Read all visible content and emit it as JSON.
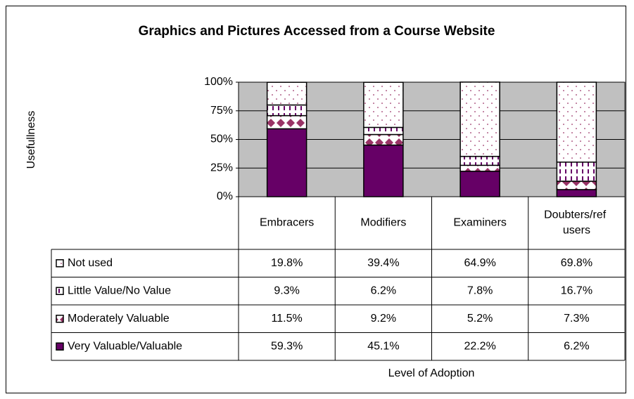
{
  "chart_data": {
    "type": "stacked_bar",
    "title": "Graphics and Pictures Accessed from a Course Website",
    "y_label": "Usefullness",
    "x_label": "Level of Adoption",
    "categories": [
      "Embracers",
      "Modifiers",
      "Examiners",
      "Doubters/ref users"
    ],
    "series": [
      {
        "name": "Very Valuable/Valuable",
        "color": "#660066",
        "pattern": "solid",
        "values": [
          59.3,
          45.1,
          22.2,
          6.2
        ],
        "value_labels": [
          "59.3%",
          "45.1%",
          "22.2%",
          "6.2%"
        ]
      },
      {
        "name": "Moderately Valuable",
        "color": "#993366",
        "pattern": "diamond",
        "values": [
          11.5,
          9.2,
          5.2,
          7.3
        ],
        "value_labels": [
          "11.5%",
          "9.2%",
          "5.2%",
          "7.3%"
        ]
      },
      {
        "name": "Little Value/No Value",
        "color": "#660066",
        "pattern": "vertical",
        "values": [
          9.3,
          6.2,
          7.8,
          16.7
        ],
        "value_labels": [
          "9.3%",
          "6.2%",
          "7.8%",
          "16.7%"
        ]
      },
      {
        "name": "Not used",
        "color": "#993366",
        "pattern": "dots",
        "values": [
          19.8,
          39.4,
          64.9,
          69.8
        ],
        "value_labels": [
          "19.8%",
          "39.4%",
          "64.9%",
          "69.8%"
        ]
      }
    ],
    "ylim": [
      0,
      100
    ],
    "yticks": [
      {
        "value": 0,
        "label": "0%"
      },
      {
        "value": 25,
        "label": "25%"
      },
      {
        "value": 50,
        "label": "50%"
      },
      {
        "value": 75,
        "label": "75%"
      },
      {
        "value": 100,
        "label": "100%"
      }
    ],
    "grid": true,
    "plot_background": "#c0c0c0"
  }
}
